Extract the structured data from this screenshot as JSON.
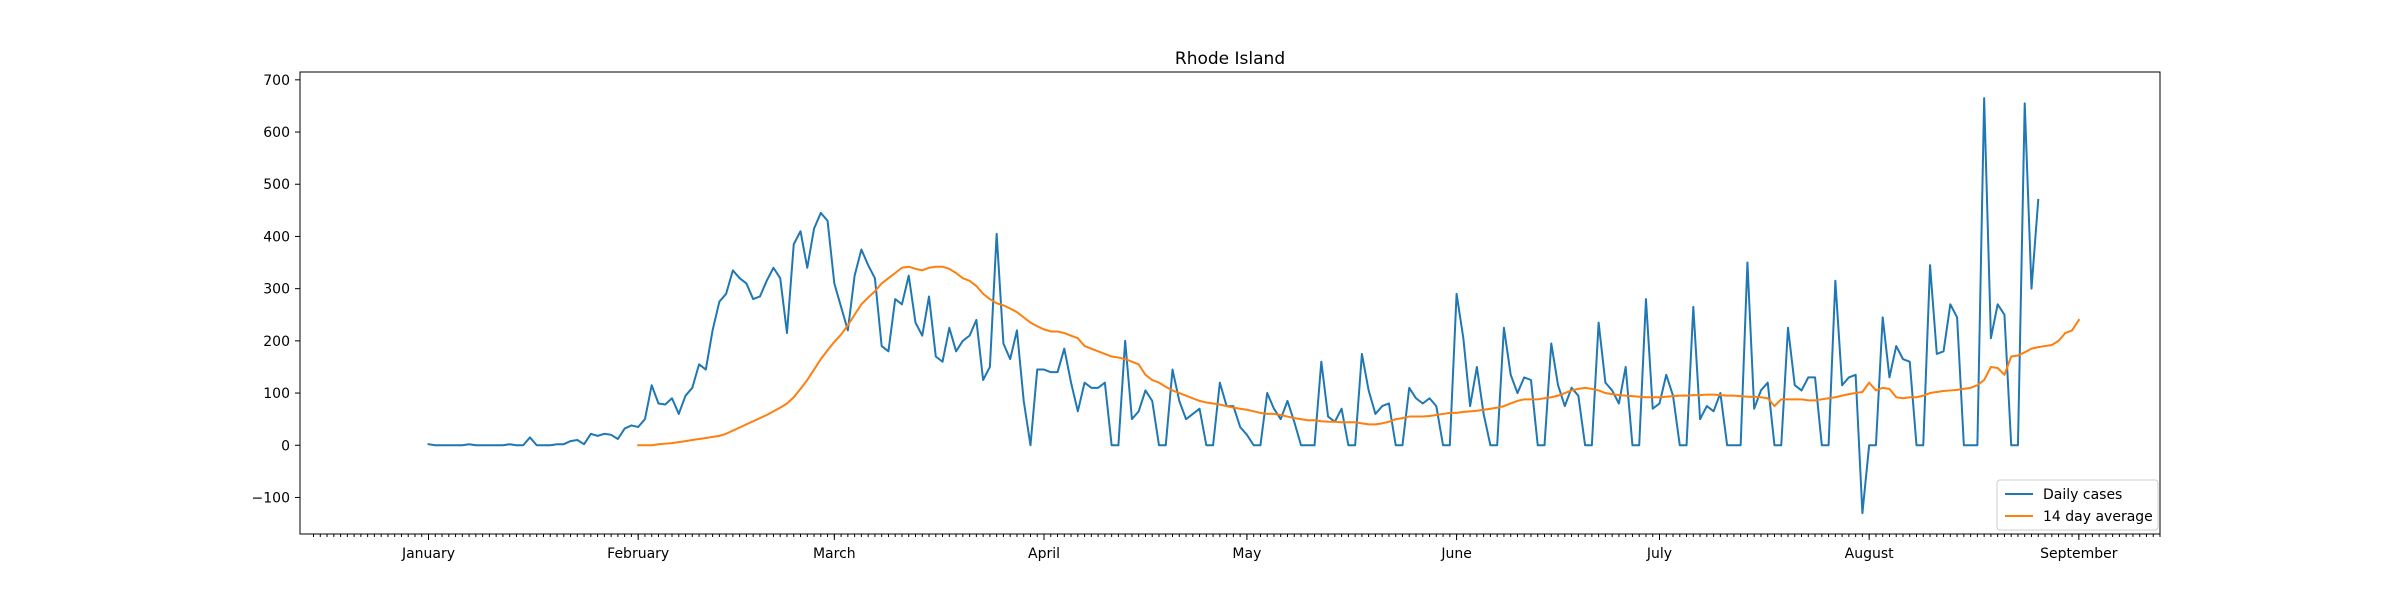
{
  "chart_data": {
    "type": "line",
    "title": "Rhode Island",
    "xlabel": "",
    "ylabel": "",
    "x_start": "2020-01-01",
    "x_tick_labels": [
      "January",
      "February",
      "March",
      "April",
      "May",
      "June",
      "July",
      "August",
      "September"
    ],
    "y_ticks": [
      -100,
      0,
      100,
      200,
      300,
      400,
      500,
      600,
      700
    ],
    "ylim": [
      -170,
      715
    ],
    "grid": false,
    "legend": "lower-right",
    "series": [
      {
        "name": "Daily cases",
        "color": "#1f77b4",
        "start": "2020-01-01",
        "values": [
          2,
          0,
          0,
          0,
          0,
          0,
          2,
          0,
          0,
          0,
          0,
          0,
          2,
          0,
          0,
          15,
          0,
          0,
          0,
          2,
          2,
          8,
          10,
          2,
          22,
          18,
          22,
          20,
          12,
          32,
          38,
          35,
          50,
          115,
          80,
          78,
          90,
          60,
          95,
          110,
          155,
          145,
          220,
          275,
          290,
          335,
          320,
          310,
          280,
          285,
          315,
          340,
          320,
          215,
          385,
          410,
          340,
          415,
          445,
          430,
          310,
          265,
          220,
          325,
          375,
          345,
          320,
          190,
          180,
          280,
          270,
          325,
          235,
          210,
          285,
          170,
          160,
          225,
          180,
          200,
          210,
          240,
          125,
          150,
          405,
          195,
          165,
          220,
          85,
          0,
          145,
          145,
          140,
          140,
          185,
          120,
          65,
          120,
          110,
          110,
          120,
          0,
          0,
          200,
          50,
          65,
          105,
          85,
          0,
          0,
          145,
          85,
          50,
          60,
          70,
          0,
          0,
          120,
          75,
          75,
          35,
          20,
          0,
          0,
          100,
          70,
          50,
          85,
          45,
          0,
          0,
          0,
          160,
          55,
          45,
          70,
          0,
          0,
          175,
          105,
          60,
          75,
          80,
          0,
          0,
          110,
          90,
          80,
          90,
          75,
          0,
          0,
          290,
          205,
          75,
          150,
          60,
          0,
          0,
          225,
          135,
          100,
          130,
          125,
          0,
          0,
          195,
          115,
          75,
          110,
          95,
          0,
          0,
          235,
          120,
          105,
          80,
          150,
          0,
          0,
          280,
          70,
          80,
          135,
          95,
          0,
          0,
          265,
          50,
          75,
          65,
          100,
          0,
          0,
          0,
          350,
          70,
          105,
          120,
          0,
          0,
          225,
          115,
          105,
          130,
          130,
          0,
          0,
          315,
          115,
          130,
          135,
          -130,
          0,
          0,
          245,
          130,
          190,
          165,
          160,
          0,
          0,
          345,
          175,
          180,
          270,
          245,
          0,
          0,
          0,
          665,
          205,
          270,
          250,
          0,
          0,
          655,
          300,
          470
        ]
      },
      {
        "name": "14 day average",
        "color": "#ff7f0e",
        "start": "2020-02-01",
        "values": [
          0,
          0,
          0,
          2,
          3,
          4,
          6,
          8,
          10,
          12,
          14,
          16,
          18,
          22,
          28,
          34,
          40,
          46,
          52,
          58,
          65,
          72,
          80,
          92,
          108,
          125,
          145,
          165,
          182,
          198,
          212,
          230,
          250,
          270,
          283,
          295,
          310,
          320,
          330,
          340,
          342,
          338,
          335,
          340,
          342,
          342,
          338,
          330,
          320,
          315,
          305,
          290,
          280,
          272,
          268,
          262,
          255,
          245,
          235,
          228,
          222,
          218,
          218,
          215,
          210,
          205,
          190,
          185,
          180,
          175,
          170,
          168,
          165,
          160,
          155,
          135,
          125,
          120,
          112,
          105,
          100,
          95,
          90,
          85,
          82,
          80,
          78,
          75,
          72,
          70,
          68,
          65,
          62,
          60,
          60,
          58,
          55,
          52,
          50,
          48,
          48,
          46,
          45,
          45,
          44,
          44,
          44,
          42,
          40,
          40,
          42,
          45,
          50,
          52,
          55,
          55,
          55,
          56,
          58,
          60,
          62,
          62,
          64,
          65,
          66,
          68,
          70,
          72,
          75,
          80,
          85,
          88,
          88,
          88,
          90,
          92,
          95,
          100,
          105,
          108,
          110,
          108,
          105,
          100,
          98,
          96,
          95,
          94,
          93,
          92,
          92,
          92,
          93,
          94,
          95,
          95,
          96,
          96,
          97,
          97,
          96,
          95,
          95,
          94,
          93,
          93,
          92,
          90,
          75,
          88,
          88,
          88,
          88,
          86,
          86,
          88,
          90,
          92,
          95,
          98,
          100,
          102,
          120,
          105,
          110,
          108,
          92,
          90,
          92,
          92,
          95,
          100,
          102,
          104,
          105,
          106,
          108,
          110,
          115,
          125,
          150,
          148,
          135,
          170,
          172,
          178,
          185,
          188,
          190,
          192,
          200,
          215,
          220,
          240
        ]
      }
    ]
  }
}
